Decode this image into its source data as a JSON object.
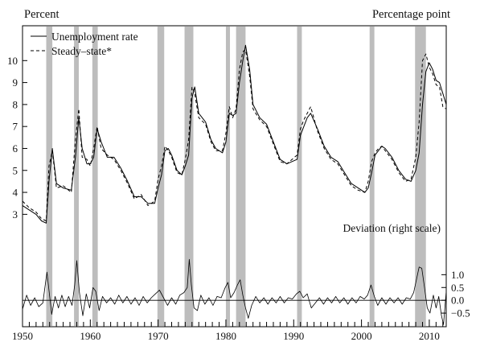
{
  "chart_data": {
    "type": "line",
    "left_axis_title": "Percent",
    "right_axis_title": "Percentage point",
    "x_range": [
      1950,
      2012.5
    ],
    "x_ticks": [
      1950,
      1960,
      1970,
      1980,
      1990,
      2000,
      2010
    ],
    "x_tick_labels": [
      "1950",
      "1960",
      "1970",
      "1980",
      "1990",
      "2000",
      "2010"
    ],
    "left_ticks": [
      3,
      4,
      5,
      6,
      7,
      8,
      9,
      10
    ],
    "left_tick_labels": [
      "3",
      "4",
      "5",
      "6",
      "7",
      "8",
      "9",
      "10"
    ],
    "right_ticks": [
      -0.5,
      0,
      0.5,
      1.0
    ],
    "right_tick_labels": [
      "−0.5",
      "0.0",
      "0.5",
      "1.0"
    ],
    "upper_panel_range": [
      2.5,
      11
    ],
    "lower_panel_range": [
      -1,
      2.3
    ],
    "legend": [
      {
        "name": "Unemployment rate",
        "style": "solid"
      },
      {
        "name": "Steady–state*",
        "style": "dashed"
      }
    ],
    "deviation_label": "Deviation (right scale)",
    "recessions": [
      [
        1953.5,
        1954.4
      ],
      [
        1957.6,
        1958.3
      ],
      [
        1960.3,
        1961.1
      ],
      [
        1969.9,
        1970.9
      ],
      [
        1973.9,
        1975.2
      ],
      [
        1980.0,
        1980.6
      ],
      [
        1981.5,
        1982.9
      ],
      [
        1990.5,
        1991.2
      ],
      [
        2001.2,
        2001.9
      ],
      [
        2007.9,
        2009.5
      ]
    ],
    "series": [
      {
        "name": "Unemployment rate",
        "axis": "left",
        "x": [
          1950,
          1951,
          1952,
          1952.8,
          1953.5,
          1953.9,
          1954.4,
          1955,
          1956,
          1957.2,
          1957.8,
          1958.3,
          1958.8,
          1959.5,
          1960,
          1960.5,
          1961,
          1961.6,
          1962.5,
          1963.5,
          1964.5,
          1965.5,
          1966.5,
          1967.5,
          1968.5,
          1969.5,
          1970,
          1970.5,
          1971,
          1971.5,
          1972,
          1972.8,
          1973.5,
          1974,
          1974.5,
          1975,
          1975.4,
          1976,
          1977,
          1977.8,
          1978.5,
          1979.5,
          1980,
          1980.5,
          1981,
          1981.5,
          1982,
          1982.5,
          1982.9,
          1983.5,
          1984,
          1985,
          1986,
          1987,
          1988,
          1989,
          1990.5,
          1991,
          1991.5,
          1992,
          1992.5,
          1993.5,
          1994.5,
          1995.5,
          1996.5,
          1997.5,
          1998.5,
          1999.5,
          2000.5,
          2001,
          2001.5,
          2002,
          2002.5,
          2003,
          2003.5,
          2004.5,
          2005.5,
          2006.5,
          2007.3,
          2008,
          2008.5,
          2009,
          2009.5,
          2010,
          2010.5,
          2011,
          2011.5,
          2012,
          2012.5
        ],
        "values": [
          3.4,
          3.2,
          3.0,
          2.7,
          2.6,
          4.5,
          6.0,
          4.4,
          4.2,
          4.1,
          5.6,
          7.4,
          6.0,
          5.3,
          5.3,
          5.6,
          6.9,
          6.3,
          5.6,
          5.6,
          5.1,
          4.5,
          3.8,
          3.8,
          3.5,
          3.5,
          4.2,
          4.8,
          5.9,
          6.0,
          5.7,
          5.0,
          4.8,
          5.2,
          5.7,
          8.3,
          8.8,
          7.6,
          7.2,
          6.4,
          6.0,
          5.8,
          6.3,
          7.6,
          7.5,
          7.6,
          9.0,
          10.0,
          10.7,
          9.6,
          8.0,
          7.4,
          7.1,
          6.3,
          5.5,
          5.3,
          5.5,
          6.6,
          7.0,
          7.4,
          7.6,
          6.9,
          6.1,
          5.6,
          5.4,
          4.9,
          4.4,
          4.2,
          4.0,
          4.2,
          4.9,
          5.7,
          5.9,
          6.1,
          6.0,
          5.6,
          5.0,
          4.6,
          4.5,
          5.0,
          5.8,
          8.0,
          9.5,
          9.9,
          9.6,
          9.1,
          9.0,
          8.5,
          8.0
        ],
        "color": "#000000"
      },
      {
        "name": "Steady–state*",
        "axis": "left",
        "x": [
          1950,
          1951,
          1952,
          1952.8,
          1953.5,
          1953.9,
          1954.4,
          1955,
          1956,
          1957.2,
          1957.8,
          1958.3,
          1958.8,
          1959.5,
          1960,
          1960.5,
          1961,
          1961.6,
          1962.5,
          1963.5,
          1964.5,
          1965.5,
          1966.5,
          1967.5,
          1968.5,
          1969.5,
          1970,
          1970.5,
          1971,
          1971.5,
          1972,
          1972.8,
          1973.5,
          1974,
          1974.5,
          1975,
          1975.4,
          1976,
          1977,
          1977.8,
          1978.5,
          1979.5,
          1980,
          1980.5,
          1981,
          1981.5,
          1982,
          1982.5,
          1982.9,
          1983.5,
          1984,
          1985,
          1986,
          1987,
          1988,
          1989,
          1990.5,
          1991,
          1991.5,
          1992,
          1992.5,
          1993.5,
          1994.5,
          1995.5,
          1996.5,
          1997.5,
          1998.5,
          1999.5,
          2000.5,
          2001,
          2001.5,
          2002,
          2002.5,
          2003,
          2003.5,
          2004.5,
          2005.5,
          2006.5,
          2007.3,
          2008,
          2008.5,
          2009,
          2009.5,
          2010,
          2010.5,
          2011,
          2011.5,
          2012,
          2012.5
        ],
        "values": [
          3.6,
          3.3,
          3.1,
          2.8,
          2.7,
          5.2,
          5.9,
          4.2,
          4.3,
          4.0,
          6.4,
          7.8,
          5.6,
          5.5,
          5.2,
          6.0,
          7.0,
          6.0,
          5.7,
          5.5,
          5.0,
          4.4,
          3.7,
          3.9,
          3.4,
          3.6,
          4.6,
          5.2,
          6.1,
          5.9,
          5.6,
          4.9,
          4.8,
          5.5,
          6.4,
          8.8,
          8.5,
          7.4,
          7.1,
          6.3,
          5.9,
          5.9,
          6.7,
          7.9,
          7.4,
          7.8,
          9.6,
          10.4,
          10.5,
          9.3,
          7.8,
          7.3,
          7.0,
          6.2,
          5.4,
          5.3,
          5.7,
          6.9,
          7.3,
          7.6,
          7.9,
          6.8,
          6.0,
          5.5,
          5.3,
          4.8,
          4.3,
          4.1,
          4.0,
          4.5,
          5.4,
          5.8,
          6.0,
          6.1,
          5.9,
          5.5,
          4.9,
          4.5,
          4.6,
          5.6,
          7.2,
          10.0,
          10.3,
          9.7,
          9.4,
          8.9,
          8.8,
          7.9,
          7.8
        ],
        "color": "#000000"
      },
      {
        "name": "Deviation (right scale)",
        "axis": "right",
        "x": [
          1950,
          1950.6,
          1951.2,
          1951.8,
          1952.4,
          1953,
          1953.6,
          1953.9,
          1954.3,
          1954.8,
          1955.3,
          1955.8,
          1956.3,
          1956.8,
          1957.3,
          1957.7,
          1958,
          1958.4,
          1958.9,
          1959.4,
          1959.9,
          1960.4,
          1960.8,
          1961.3,
          1961.8,
          1962.4,
          1963,
          1963.6,
          1964.2,
          1964.8,
          1965.4,
          1966,
          1966.6,
          1967.2,
          1967.8,
          1968.4,
          1969,
          1969.6,
          1970.2,
          1970.8,
          1971.4,
          1972,
          1972.6,
          1973.2,
          1973.8,
          1974.3,
          1974.6,
          1974.9,
          1975.3,
          1975.8,
          1976.3,
          1976.9,
          1977.5,
          1978.1,
          1978.7,
          1979.3,
          1979.9,
          1980.3,
          1980.7,
          1981.2,
          1981.7,
          1982.1,
          1982.5,
          1982.9,
          1983.3,
          1983.8,
          1984.4,
          1985,
          1985.6,
          1986.2,
          1986.8,
          1987.4,
          1988,
          1988.6,
          1989.2,
          1989.8,
          1990.4,
          1990.9,
          1991.4,
          1992,
          1992.6,
          1993.2,
          1993.8,
          1994.4,
          1995,
          1995.6,
          1996.2,
          1996.8,
          1997.4,
          1998,
          1998.6,
          1999.2,
          1999.8,
          2000.4,
          2000.9,
          2001.4,
          2001.9,
          2002.4,
          2003,
          2003.6,
          2004.2,
          2004.8,
          2005.4,
          2006,
          2006.6,
          2007.2,
          2007.7,
          2008.1,
          2008.5,
          2008.9,
          2009.3,
          2009.7,
          2010.1,
          2010.6,
          2011,
          2011.4,
          2011.8,
          2012.1,
          2012.5
        ],
        "values": [
          -0.35,
          0.2,
          -0.2,
          0.1,
          -0.25,
          -0.1,
          1.1,
          0.4,
          -0.55,
          0.15,
          -0.3,
          0.2,
          -0.25,
          0.15,
          -0.2,
          0.6,
          1.55,
          0.3,
          -0.6,
          0.25,
          -0.3,
          0.5,
          0.35,
          -0.4,
          0.15,
          -0.1,
          0.1,
          -0.15,
          0.2,
          -0.1,
          0.15,
          -0.15,
          0.1,
          -0.2,
          0.15,
          -0.1,
          0.1,
          0.25,
          0.4,
          0.1,
          -0.2,
          0.1,
          -0.15,
          0.2,
          0.3,
          0.5,
          1.6,
          0.6,
          -0.3,
          -0.4,
          0.2,
          -0.15,
          0.1,
          -0.2,
          0.15,
          0.1,
          0.5,
          0.7,
          0.1,
          0.3,
          0.6,
          0.8,
          0.2,
          -0.3,
          -0.7,
          -0.2,
          0.15,
          -0.1,
          0.1,
          -0.15,
          0.1,
          -0.1,
          0.15,
          -0.1,
          0.1,
          0.05,
          0.25,
          0.35,
          0.1,
          0.25,
          -0.3,
          -0.1,
          0.1,
          -0.15,
          0.1,
          -0.1,
          0.15,
          -0.1,
          0.1,
          -0.15,
          0.1,
          -0.1,
          0.15,
          0.05,
          0.2,
          0.6,
          0.15,
          -0.2,
          0.1,
          -0.15,
          0.1,
          -0.1,
          0.1,
          -0.15,
          0.1,
          0.05,
          0.3,
          0.8,
          1.3,
          1.25,
          0.5,
          -0.3,
          -0.5,
          0.2,
          -0.3,
          0.15,
          -0.6,
          -0.95,
          0.35
        ],
        "color": "#000000"
      }
    ]
  }
}
